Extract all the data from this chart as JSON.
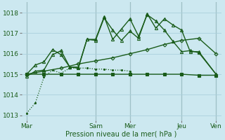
{
  "background_color": "#cce8f0",
  "grid_color": "#aad0dc",
  "line_color": "#1a5c1a",
  "xlabel": "Pression niveau de la mer( hPa )",
  "ylim": [
    1012.75,
    1018.5
  ],
  "yticks": [
    1013,
    1014,
    1015,
    1016,
    1017,
    1018
  ],
  "xtick_labels": [
    "Mar",
    "Sam",
    "Mer",
    "Jeu",
    "Ven"
  ],
  "xtick_positions": [
    0,
    4,
    6,
    9,
    11
  ],
  "total_x": 11,
  "vline_color": "#557755",
  "series_flat_x": [
    0,
    1,
    2,
    3,
    4,
    5,
    6,
    7,
    8,
    9,
    10,
    11
  ],
  "series_flat_y": [
    1015.0,
    1015.0,
    1015.0,
    1015.0,
    1015.0,
    1015.0,
    1015.0,
    1015.0,
    1015.0,
    1015.0,
    1014.95,
    1014.95
  ],
  "series_diag_x": [
    0,
    1,
    2,
    3,
    4,
    5,
    6,
    7,
    8,
    9,
    10,
    11
  ],
  "series_diag_y": [
    1015.0,
    1015.15,
    1015.3,
    1015.5,
    1015.65,
    1015.8,
    1016.0,
    1016.2,
    1016.45,
    1016.65,
    1016.75,
    1016.0
  ],
  "series_wiggly1_x": [
    0,
    0.5,
    1,
    1.5,
    2,
    2.5,
    3,
    3.5,
    4,
    4.5,
    5,
    5.5,
    6,
    6.5,
    7,
    7.5,
    8,
    8.5,
    9,
    9.5,
    10,
    11
  ],
  "series_wiggly1_y": [
    1014.9,
    1015.15,
    1015.2,
    1015.95,
    1016.15,
    1015.35,
    1015.3,
    1016.7,
    1016.65,
    1017.75,
    1017.15,
    1016.65,
    1017.1,
    1016.75,
    1017.95,
    1017.25,
    1017.7,
    1017.4,
    1017.15,
    1016.1,
    1016.1,
    1015.0
  ],
  "series_wiggly2_x": [
    0,
    0.5,
    1,
    1.5,
    2,
    2.5,
    3,
    3.5,
    4,
    4.5,
    5,
    5.5,
    6,
    6.5,
    7,
    7.5,
    8,
    8.5,
    9,
    9.5,
    10,
    11
  ],
  "series_wiggly2_y": [
    1015.0,
    1015.45,
    1015.6,
    1016.2,
    1015.95,
    1015.35,
    1015.35,
    1016.7,
    1016.7,
    1017.8,
    1016.7,
    1017.2,
    1017.7,
    1016.85,
    1017.9,
    1017.6,
    1017.15,
    1016.6,
    1016.1,
    1016.15,
    1016.05,
    1015.0
  ],
  "series_dotted_x": [
    0,
    0.5,
    1,
    1.5,
    2,
    2.5,
    3,
    3.5,
    4,
    4.5,
    5,
    5.5,
    6
  ],
  "series_dotted_y": [
    1013.1,
    1013.6,
    1014.85,
    1015.2,
    1015.05,
    1015.3,
    1015.3,
    1015.3,
    1015.25,
    1015.25,
    1015.2,
    1015.2,
    1015.15
  ]
}
